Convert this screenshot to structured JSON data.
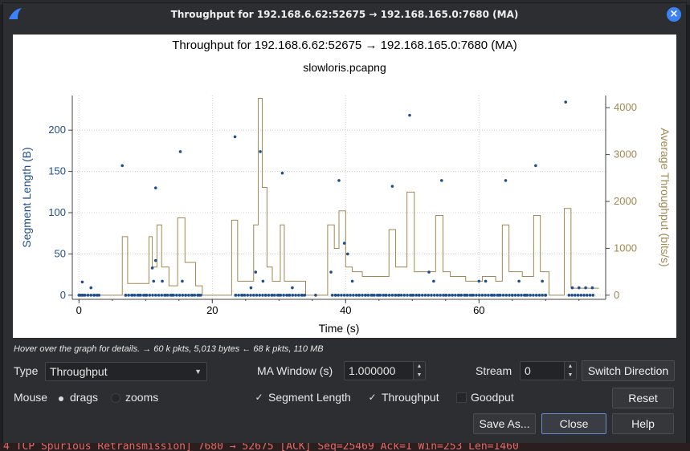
{
  "background": {
    "top_text": "...",
    "bottom_text": "4 TCP Spurious Retransmission] 7680 → 52675 [ACK] Seq=25469 Ack=1 Win=253 Len=1460"
  },
  "window": {
    "title": "Throughput for 192.168.6.62:52675 → 192.168.165.0:7680 (MA)",
    "app_icon": "wireshark-fin-icon",
    "close_icon": "close-icon",
    "close_glyph": "×",
    "accent": "#3b82f6"
  },
  "plot": {
    "title": "Throughput for 192.168.6.62:52675 → 192.168.165.0:7680 (MA)",
    "subtitle": "slowloris.pcapng"
  },
  "chart_data": {
    "type": "scatter",
    "xlabel": "Time (s)",
    "ylabel_left": "Segment Length (B)",
    "ylabel_right": "Average Throughput (bits/s)",
    "xlim": [
      -1,
      79
    ],
    "ylim_left": [
      -5,
      242
    ],
    "ylim_right": [
      -88,
      4260
    ],
    "x_ticks": [
      0,
      20,
      40,
      60
    ],
    "y_ticks_left": [
      0,
      50,
      100,
      150,
      200
    ],
    "y_ticks_right": [
      0,
      1000,
      2000,
      3000,
      4000
    ],
    "grid": true,
    "series_colors": {
      "segment_length": "#1f4e8c",
      "throughput": "#a08850"
    },
    "segment_length_points": [
      [
        0.2,
        0
      ],
      [
        0.6,
        0
      ],
      [
        0.5,
        16
      ],
      [
        1.8,
        9
      ],
      [
        2.3,
        0
      ],
      [
        3.0,
        0
      ],
      [
        6.5,
        157
      ],
      [
        7.0,
        0
      ],
      [
        8.0,
        0
      ],
      [
        9.0,
        0
      ],
      [
        10.0,
        0
      ],
      [
        11.5,
        130
      ],
      [
        11.5,
        42
      ],
      [
        11.0,
        33
      ],
      [
        11.2,
        17
      ],
      [
        12.5,
        17
      ],
      [
        13.0,
        0
      ],
      [
        14.0,
        0
      ],
      [
        15.2,
        174
      ],
      [
        15.5,
        17
      ],
      [
        16.0,
        0
      ],
      [
        17.0,
        0
      ],
      [
        18.0,
        0
      ],
      [
        23.4,
        192
      ],
      [
        23.5,
        0
      ],
      [
        24.5,
        0
      ],
      [
        25.8,
        9
      ],
      [
        26.5,
        28
      ],
      [
        27.2,
        174
      ],
      [
        27.6,
        17
      ],
      [
        28.0,
        0
      ],
      [
        29.0,
        0
      ],
      [
        30.5,
        148
      ],
      [
        30.0,
        0
      ],
      [
        31.5,
        0
      ],
      [
        32.0,
        9
      ],
      [
        33.5,
        0
      ],
      [
        35.5,
        0
      ],
      [
        37.8,
        28
      ],
      [
        38.5,
        0
      ],
      [
        39.0,
        139
      ],
      [
        39.8,
        63
      ],
      [
        40.3,
        50
      ],
      [
        41.0,
        17
      ],
      [
        42.0,
        0
      ],
      [
        43.0,
        0
      ],
      [
        44.0,
        0
      ],
      [
        45.0,
        0
      ],
      [
        46.0,
        0
      ],
      [
        47.0,
        132
      ],
      [
        47.5,
        0
      ],
      [
        48.0,
        0
      ],
      [
        49.6,
        218
      ],
      [
        50.0,
        0
      ],
      [
        51.0,
        0
      ],
      [
        52.5,
        28
      ],
      [
        53.2,
        17
      ],
      [
        54.4,
        139
      ],
      [
        55.0,
        0
      ],
      [
        56.0,
        0
      ],
      [
        57.0,
        0
      ],
      [
        58.0,
        0
      ],
      [
        59.0,
        0
      ],
      [
        60.0,
        17
      ],
      [
        61.0,
        17
      ],
      [
        62.0,
        0
      ],
      [
        63.0,
        0
      ],
      [
        64.0,
        139
      ],
      [
        65.0,
        0
      ],
      [
        66.0,
        17
      ],
      [
        67.0,
        0
      ],
      [
        68.5,
        157
      ],
      [
        69.5,
        17
      ],
      [
        70.0,
        0
      ],
      [
        73.0,
        234
      ],
      [
        74.0,
        9
      ],
      [
        75.0,
        9
      ],
      [
        76.0,
        9
      ],
      [
        77.0,
        9
      ]
    ],
    "throughput_steps": [
      [
        0,
        0
      ],
      [
        6.5,
        1250
      ],
      [
        7.3,
        250
      ],
      [
        10.5,
        1250
      ],
      [
        11.0,
        600
      ],
      [
        11.7,
        1500
      ],
      [
        12.4,
        600
      ],
      [
        13.5,
        200
      ],
      [
        14.8,
        1650
      ],
      [
        15.9,
        700
      ],
      [
        17.5,
        200
      ],
      [
        18.5,
        0
      ],
      [
        22.9,
        1600
      ],
      [
        23.8,
        300
      ],
      [
        26.2,
        1500
      ],
      [
        26.9,
        4200
      ],
      [
        27.5,
        2300
      ],
      [
        28.2,
        600
      ],
      [
        29.0,
        300
      ],
      [
        30.2,
        1500
      ],
      [
        30.8,
        300
      ],
      [
        33.0,
        300
      ],
      [
        34.0,
        0
      ],
      [
        37.3,
        1500
      ],
      [
        38.3,
        1000
      ],
      [
        39.0,
        1800
      ],
      [
        40.0,
        600
      ],
      [
        41.0,
        500
      ],
      [
        42.5,
        400
      ],
      [
        44.5,
        400
      ],
      [
        46.5,
        1400
      ],
      [
        47.5,
        600
      ],
      [
        49.2,
        2200
      ],
      [
        50.3,
        500
      ],
      [
        52.0,
        500
      ],
      [
        53.5,
        1700
      ],
      [
        54.6,
        500
      ],
      [
        55.7,
        400
      ],
      [
        58.0,
        300
      ],
      [
        60.5,
        400
      ],
      [
        62.5,
        300
      ],
      [
        63.5,
        1500
      ],
      [
        64.5,
        500
      ],
      [
        66.5,
        400
      ],
      [
        68.2,
        1700
      ],
      [
        69.2,
        500
      ],
      [
        70.5,
        0
      ],
      [
        72.8,
        1850
      ],
      [
        73.8,
        150
      ],
      [
        77.5,
        150
      ]
    ]
  },
  "hint": "Hover over the graph for details. → 60 k pkts, 5,013 bytes ← 68 k pkts, 110 MB",
  "controls": {
    "type_label": "Type",
    "type_value": "Throughput",
    "type_arrow_glyph": "▼",
    "ma_window_label": "MA Window (s)",
    "ma_window_value": "1.000000",
    "stream_label": "Stream",
    "stream_value": "0",
    "spin_up": "▲",
    "spin_down": "▼",
    "switch_direction": "Switch Direction",
    "mouse_label": "Mouse",
    "drags_label": "drags",
    "zooms_label": "zooms",
    "segment_length_label": "Segment Length",
    "throughput_label": "Throughput",
    "goodput_label": "Goodput",
    "check_glyph": "✓",
    "reset": "Reset",
    "save_as": "Save As...",
    "close": "Close",
    "help": "Help"
  }
}
